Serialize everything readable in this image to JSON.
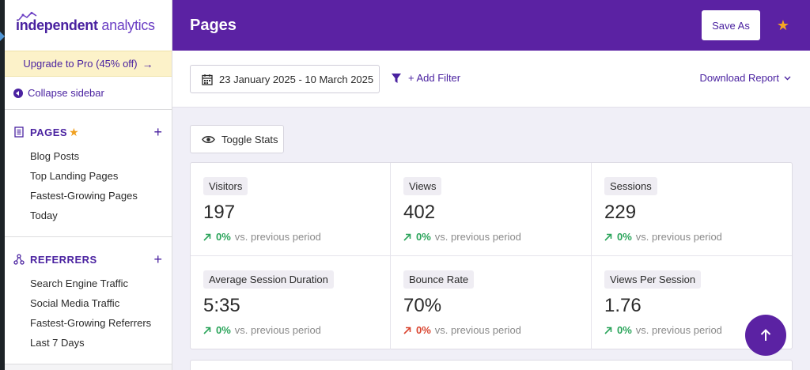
{
  "sidebar": {
    "logo_bold": "independent",
    "logo_light": "analytics",
    "upgrade_label": "Upgrade to Pro (45% off)",
    "collapse_label": "Collapse sidebar",
    "sections": [
      {
        "title": "PAGES",
        "icon": "document-icon",
        "starred": true,
        "items": [
          "Blog Posts",
          "Top Landing Pages",
          "Fastest-Growing Pages",
          "Today"
        ]
      },
      {
        "title": "REFERRERS",
        "icon": "network-icon",
        "starred": false,
        "items": [
          "Search Engine Traffic",
          "Social Media Traffic",
          "Fastest-Growing Referrers",
          "Last 7 Days"
        ]
      }
    ]
  },
  "header": {
    "title": "Pages",
    "save_as_label": "Save As",
    "favorite_icon": "star-icon"
  },
  "filters": {
    "date_range": "23 January 2025 - 10 March 2025",
    "add_filter_label": "+ Add Filter",
    "download_label": "Download Report"
  },
  "toggle_stats_label": "Toggle Stats",
  "stats": [
    {
      "label": "Visitors",
      "value": "197",
      "change": "0%",
      "direction": "up",
      "suffix": "vs. previous period"
    },
    {
      "label": "Views",
      "value": "402",
      "change": "0%",
      "direction": "up",
      "suffix": "vs. previous period"
    },
    {
      "label": "Sessions",
      "value": "229",
      "change": "0%",
      "direction": "up",
      "suffix": "vs. previous period"
    },
    {
      "label": "Average Session Duration",
      "value": "5:35",
      "change": "0%",
      "direction": "up",
      "suffix": "vs. previous period"
    },
    {
      "label": "Bounce Rate",
      "value": "70%",
      "change": "0%",
      "direction": "down",
      "suffix": "vs. previous period"
    },
    {
      "label": "Views Per Session",
      "value": "1.76",
      "change": "0%",
      "direction": "up",
      "suffix": "vs. previous period"
    }
  ],
  "colors": {
    "brand_purple": "#5b22a3",
    "accent_star": "#f5a623",
    "positive": "#2aa45a",
    "negative": "#d9442f"
  }
}
